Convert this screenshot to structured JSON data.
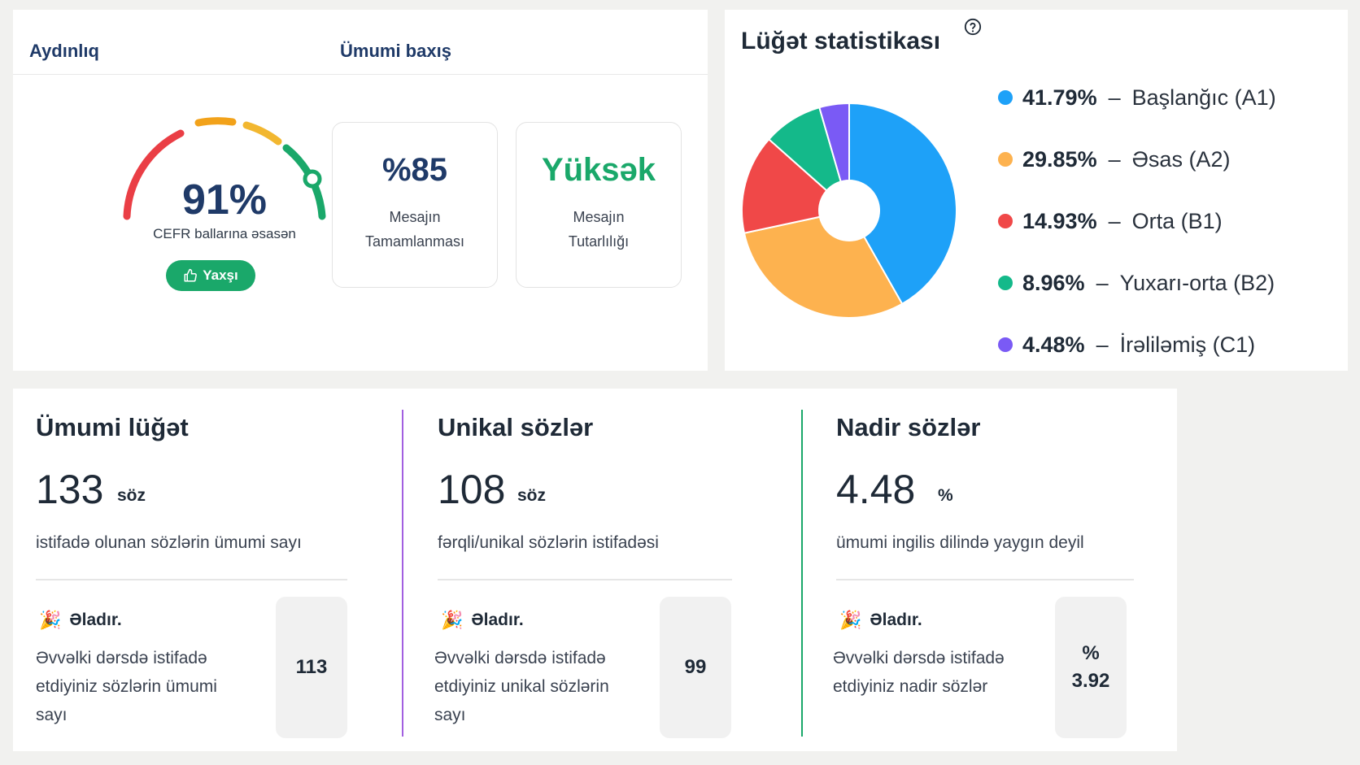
{
  "clarity": {
    "tab_clarity": "Aydınlıq",
    "tab_overview": "Ümumi baxış",
    "score": "91%",
    "score_fraction": 0.91,
    "caption": "CEFR ballarına əsasən",
    "badge": "Yaxşı",
    "metrics": [
      {
        "value": "%85",
        "label": "Mesajın Tamamlanması",
        "color": "#1f3a68"
      },
      {
        "value": "Yüksək",
        "label": "Mesajın Tutarlılığı",
        "color": "#1aa86a"
      }
    ]
  },
  "vocab_stats": {
    "title": "Lüğət statistikası",
    "chart_data": {
      "type": "pie",
      "donut": true,
      "categories": [
        "Başlanğıc (A1)",
        "Əsas (A2)",
        "Orta (B1)",
        "Yuxarı-orta (B2)",
        "İrəliləmiş (C1)"
      ],
      "values": [
        41.79,
        29.85,
        14.93,
        8.96,
        4.48
      ],
      "labels": [
        "41.79%",
        "29.85%",
        "14.93%",
        "8.96%",
        "4.48%"
      ],
      "colors": [
        "#1ea1f8",
        "#fdb24f",
        "#f04848",
        "#14b98a",
        "#7a5af5"
      ],
      "legend_position": "right"
    }
  },
  "bottom": {
    "total": {
      "title": "Ümumi lüğət",
      "value": "133",
      "unit": "söz",
      "desc": "istifadə olunan sözlərin ümumi sayı",
      "prev_head": "Əladır.",
      "prev_desc": "Əvvəlki dərsdə istifadə etdiyiniz sözlərin ümumi sayı",
      "prev_value": "113"
    },
    "unique": {
      "title": "Unikal sözlər",
      "value": "108",
      "unit": "söz",
      "desc": "fərqli/unikal sözlərin istifadəsi",
      "prev_head": "Əladır.",
      "prev_desc": "Əvvəlki dərsdə istifadə etdiyiniz unikal sözlərin sayı",
      "prev_value": "99"
    },
    "rare": {
      "title": "Nadir sözlər",
      "value": "4.48",
      "unit": "%",
      "desc": "ümumi ingilis dilində yaygın deyil",
      "prev_head": "Əladır.",
      "prev_desc": "Əvvəlki dərsdə istifadə etdiyiniz nadir sözlər",
      "prev_unit": "%",
      "prev_value": "3.92"
    }
  }
}
